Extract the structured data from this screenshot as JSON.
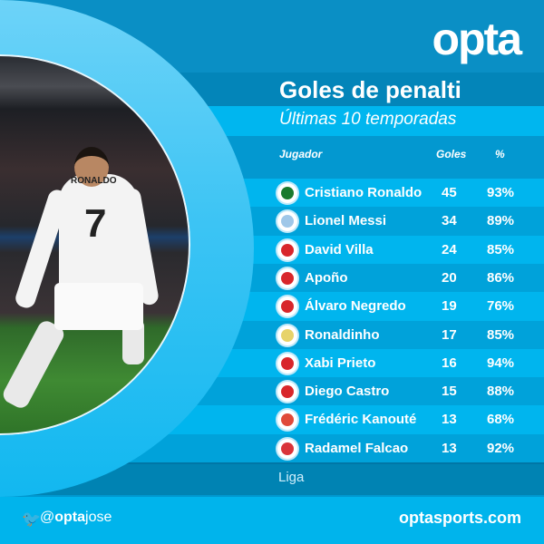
{
  "brand": {
    "logo": "opta",
    "colors": {
      "background": "#00b4ec",
      "dark_band": "#0385b9",
      "ring": "#3cc4f4"
    }
  },
  "title": "Goles de penalti",
  "subtitle": "Últimas 10 temporadas",
  "columns": {
    "player": "Jugador",
    "goals": "Goles",
    "pct": "%"
  },
  "photo": {
    "jersey_name": "RONALDO",
    "jersey_number": "7"
  },
  "rows": [
    {
      "player": "Cristiano Ronaldo",
      "goals": "45",
      "pct": "93%",
      "flag": "portugal",
      "flag_color": "#1a7a2e"
    },
    {
      "player": "Lionel Messi",
      "goals": "34",
      "pct": "89%",
      "flag": "argentina-crest",
      "flag_color": "#9fc7e8"
    },
    {
      "player": "David Villa",
      "goals": "24",
      "pct": "85%",
      "flag": "spain",
      "flag_color": "#d8262b"
    },
    {
      "player": "Apoño",
      "goals": "20",
      "pct": "86%",
      "flag": "spain",
      "flag_color": "#d8262b"
    },
    {
      "player": "Álvaro Negredo",
      "goals": "19",
      "pct": "76%",
      "flag": "spain",
      "flag_color": "#d8262b"
    },
    {
      "player": "Ronaldinho",
      "goals": "17",
      "pct": "85%",
      "flag": "brazil-crest",
      "flag_color": "#e7d36a"
    },
    {
      "player": "Xabi Prieto",
      "goals": "16",
      "pct": "94%",
      "flag": "spain",
      "flag_color": "#d8262b"
    },
    {
      "player": "Diego Castro",
      "goals": "15",
      "pct": "88%",
      "flag": "spain",
      "flag_color": "#d8262b"
    },
    {
      "player": "Frédéric Kanouté",
      "goals": "13",
      "pct": "68%",
      "flag": "sevilla-crest",
      "flag_color": "#e04a3a"
    },
    {
      "player": "Radamel Falcao",
      "goals": "13",
      "pct": "92%",
      "flag": "colombia-crest",
      "flag_color": "#d9343a"
    }
  ],
  "competition": "Liga",
  "footer": {
    "handle_at": "@",
    "handle_brand": "opta",
    "handle_name": "jose",
    "site": "optasports.com",
    "social_icon": "twitter-bird-icon"
  }
}
